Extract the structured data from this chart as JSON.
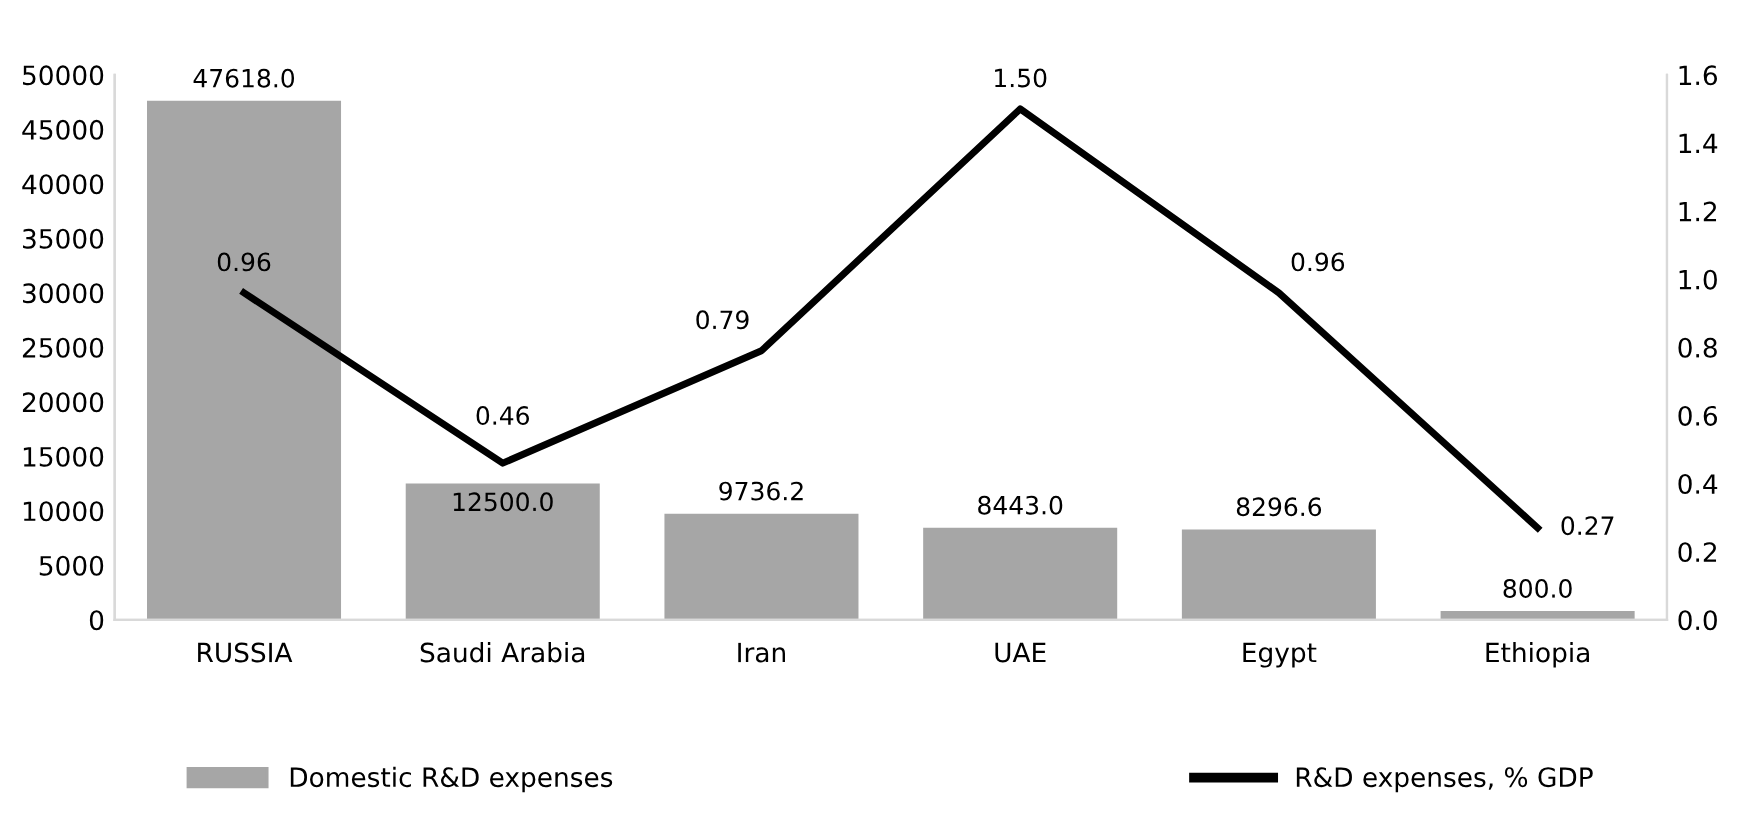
{
  "chart_data": {
    "type": "bar",
    "categories": [
      "RUSSIA",
      "Saudi Arabia",
      "Iran",
      "UAE",
      "Egypt",
      "Ethiopia"
    ],
    "series": [
      {
        "name": "Domestic R&D expenses",
        "color": "#a6a6a6",
        "values": [
          47618.0,
          12500.0,
          9736.2,
          8443.0,
          8296.6,
          800.0
        ],
        "value_labels": [
          "47618.0",
          "12500.0",
          "9736.2",
          "8443.0",
          "8296.6",
          "800.0"
        ]
      },
      {
        "name": "R&D expenses, % GDP",
        "type": "line",
        "axis": "y2",
        "color": "#000000",
        "values": [
          0.96,
          0.46,
          0.79,
          1.5,
          0.96,
          0.27
        ],
        "value_labels": [
          "0.96",
          "0.46",
          "0.79",
          "1.50",
          "0.96",
          "0.27"
        ]
      }
    ],
    "ylim": [
      0,
      50000
    ],
    "yticks": [
      0,
      5000,
      10000,
      15000,
      20000,
      25000,
      30000,
      35000,
      40000,
      45000,
      50000
    ],
    "y2lim": [
      0,
      1.6
    ],
    "y2ticks": [
      {
        "value": 0,
        "label": "0.0"
      },
      {
        "value": 0.2,
        "label": "0.2"
      },
      {
        "value": 0.4,
        "label": "0.4"
      },
      {
        "value": 0.6,
        "label": "0.6"
      },
      {
        "value": 0.8,
        "label": "0.8"
      },
      {
        "value": 1.0,
        "label": "1.0"
      },
      {
        "value": 1.2,
        "label": "1.2"
      },
      {
        "value": 1.4,
        "label": "1.4"
      },
      {
        "value": 1.6,
        "label": "1.6"
      }
    ],
    "grid": false,
    "legend": "bottom",
    "marker": "none",
    "line_style": "solid"
  }
}
